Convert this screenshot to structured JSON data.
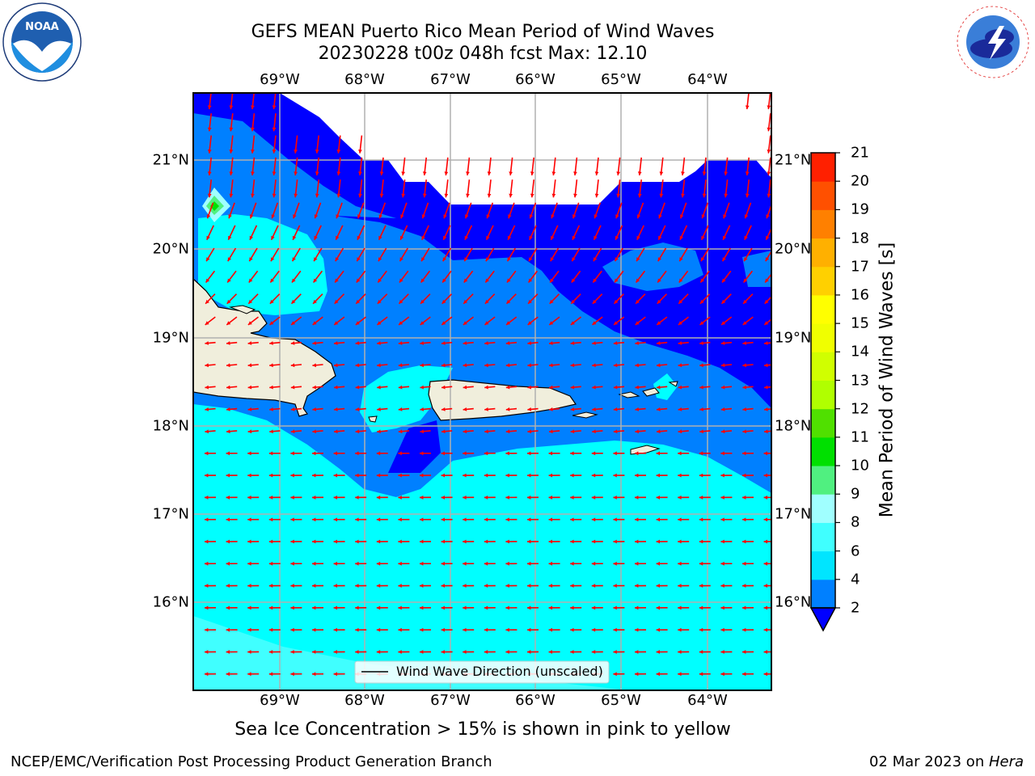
{
  "title_line1": "GEFS MEAN Puerto Rico Mean Period of Wind Waves",
  "title_line2": "20230228 t00z 048h fcst    Max: 12.10",
  "subtitle": "Sea Ice Concentration > 15% is shown in pink to yellow",
  "footer_left": "NCEP/EMC/Verification Post Processing Product Generation Branch",
  "footer_right_date": "02 Mar 2023 on ",
  "footer_right_host": "Hera",
  "legend_label": "Wind Wave Direction (unscaled)",
  "colorbar": {
    "label": "Mean Period of Wind Waves [s]",
    "ticks": [
      "2",
      "4",
      "6",
      "8",
      "9",
      "10",
      "11",
      "12",
      "13",
      "14",
      "15",
      "16",
      "17",
      "18",
      "19",
      "20",
      "21"
    ],
    "colors": [
      "#0080ff",
      "#00e5ff",
      "#40ffff",
      "#a0ffff",
      "#50f080",
      "#00e000",
      "#50e000",
      "#b0ff00",
      "#d0ff00",
      "#f0ff00",
      "#ffff00",
      "#ffd000",
      "#ffb000",
      "#ff8000",
      "#ff5000",
      "#ff2000"
    ],
    "under_color": "#0000ff"
  },
  "map": {
    "lon_labels": [
      "69°W",
      "68°W",
      "67°W",
      "66°W",
      "65°W",
      "64°W"
    ],
    "lat_labels": [
      "21°N",
      "20°N",
      "19°N",
      "18°N",
      "17°N",
      "16°N"
    ],
    "colors": {
      "deep_blue": "#0000ff",
      "blue": "#0080ff",
      "cyan": "#00ffff",
      "light_cyan": "#40ffff",
      "land": "#f0eedc",
      "arrow": "#ff0000",
      "grid": "#b0b0b0"
    }
  },
  "logos": {
    "noaa": "NOAA",
    "nws": "NATIONAL WEATHER SERVICE"
  }
}
